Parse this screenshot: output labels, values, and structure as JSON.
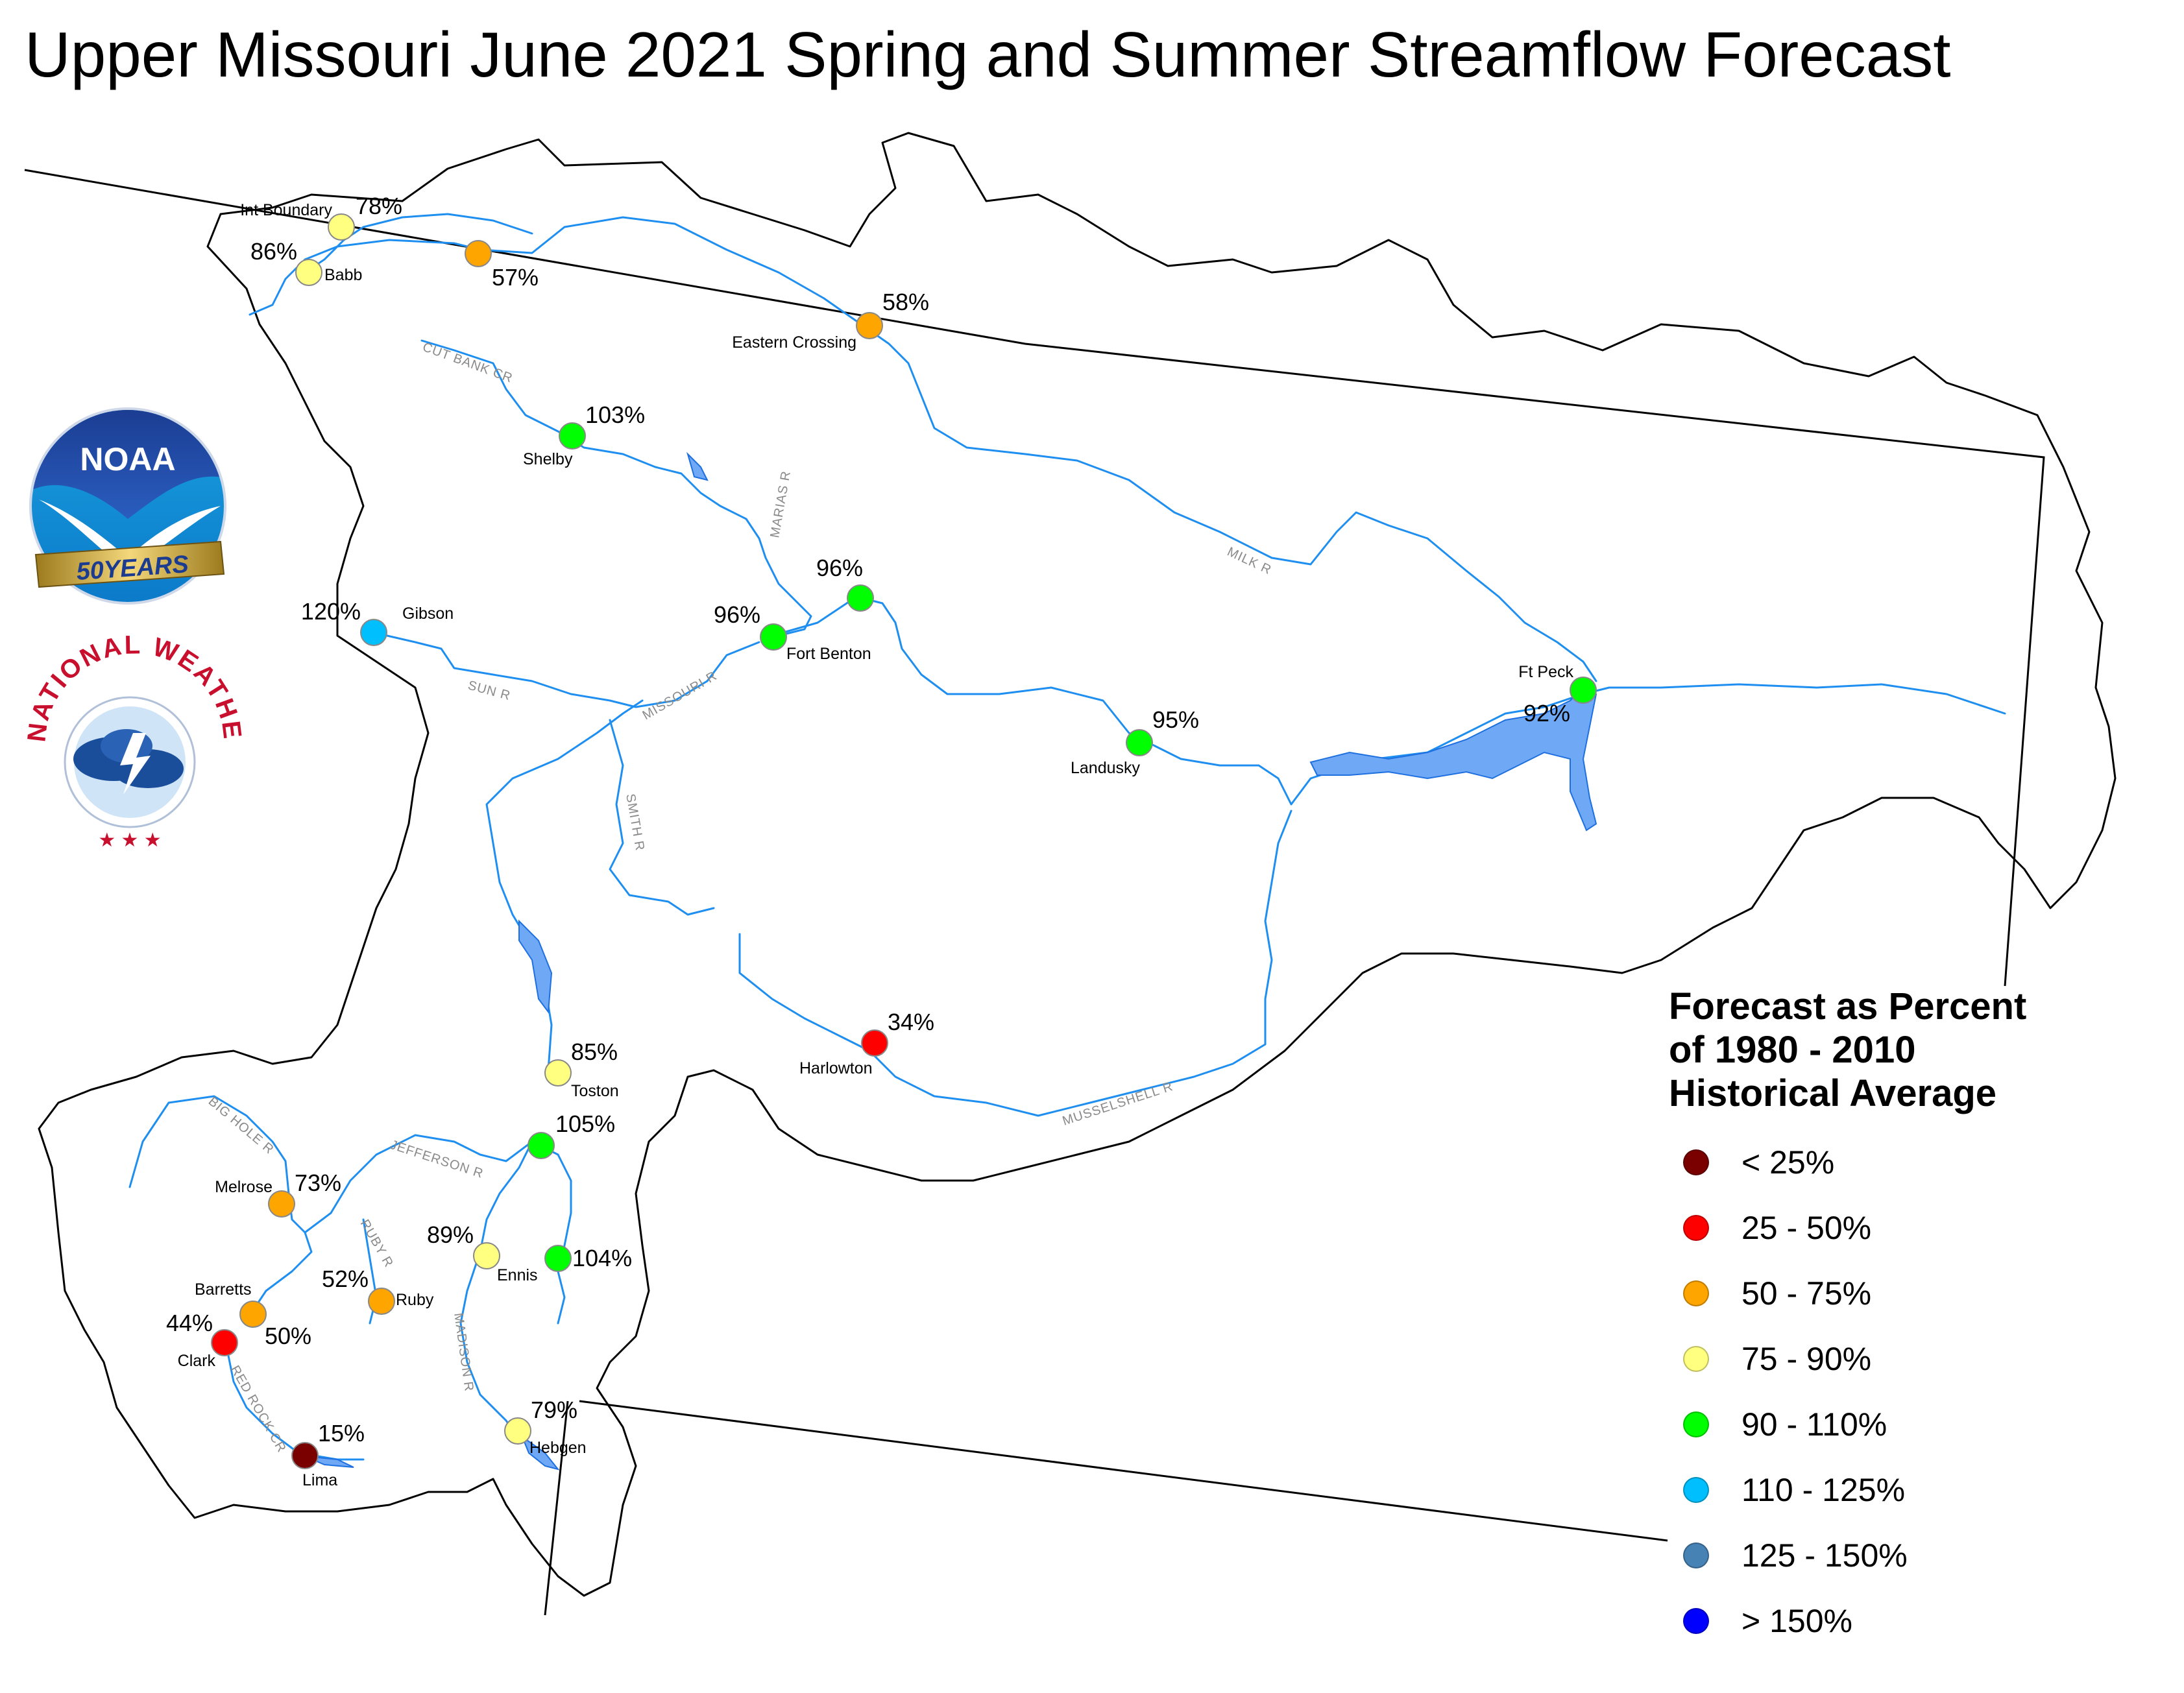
{
  "title": "Upper Missouri June 2021 Spring and Summer Streamflow Forecast",
  "legend": {
    "title_lines": [
      "Forecast as Percent",
      "of 1980 - 2010",
      "Historical Average"
    ],
    "items": [
      {
        "label": "< 25%",
        "color": "#7a0000"
      },
      {
        "label": "25 - 50%",
        "color": "#ff0000"
      },
      {
        "label": "50 - 75%",
        "color": "#ffa500"
      },
      {
        "label": "75 - 90%",
        "color": "#ffff80"
      },
      {
        "label": "90 - 110%",
        "color": "#00ff00"
      },
      {
        "label": "110 - 125%",
        "color": "#00bfff"
      },
      {
        "label": "125 - 150%",
        "color": "#4682b4"
      },
      {
        "label": "> 150%",
        "color": "#0000ff"
      }
    ]
  },
  "stations": [
    {
      "name": "Int Boundary",
      "pct": "78%",
      "color": "#ffff80"
    },
    {
      "name": "Babb",
      "pct": "86%",
      "color": "#ffff80"
    },
    {
      "name": "",
      "pct": "57%",
      "color": "#ffa500"
    },
    {
      "name": "Eastern Crossing",
      "pct": "58%",
      "color": "#ffa500"
    },
    {
      "name": "Shelby",
      "pct": "103%",
      "color": "#00ff00"
    },
    {
      "name": "Gibson",
      "pct": "120%",
      "color": "#00bfff"
    },
    {
      "name": "",
      "pct": "96%",
      "color": "#00ff00"
    },
    {
      "name": "Fort Benton",
      "pct": "96%",
      "color": "#00ff00"
    },
    {
      "name": "Landusky",
      "pct": "95%",
      "color": "#00ff00"
    },
    {
      "name": "Ft Peck",
      "pct": "92%",
      "color": "#00ff00"
    },
    {
      "name": "Harlowton",
      "pct": "34%",
      "color": "#ff0000"
    },
    {
      "name": "Toston",
      "pct": "85%",
      "color": "#ffff80"
    },
    {
      "name": "",
      "pct": "105%",
      "color": "#00ff00"
    },
    {
      "name": "Melrose",
      "pct": "73%",
      "color": "#ffa500"
    },
    {
      "name": "Ennis",
      "pct": "89%",
      "color": "#ffff80"
    },
    {
      "name": "",
      "pct": "104%",
      "color": "#00ff00"
    },
    {
      "name": "Ruby",
      "pct": "52%",
      "color": "#ffa500"
    },
    {
      "name": "Barretts",
      "pct": "50%",
      "color": "#ffa500"
    },
    {
      "name": "Clark",
      "pct": "44%",
      "color": "#ff0000"
    },
    {
      "name": "Lima",
      "pct": "15%",
      "color": "#7a0000"
    },
    {
      "name": "Hebgen",
      "pct": "79%",
      "color": "#ffff80"
    }
  ],
  "rivers": [
    {
      "label": "CUT BANK CR"
    },
    {
      "label": "MARIAS R"
    },
    {
      "label": "MILK R"
    },
    {
      "label": "SUN R"
    },
    {
      "label": "MISSOURI R"
    },
    {
      "label": "SMITH R"
    },
    {
      "label": "MUSSELSHELL R"
    },
    {
      "label": "BIG HOLE R"
    },
    {
      "label": "JEFFERSON R"
    },
    {
      "label": "RUBY R"
    },
    {
      "label": "MADISON R"
    },
    {
      "label": "RED ROCK CR"
    }
  ],
  "logos": {
    "noaa_text": "NOAA",
    "noaa_banner": "50YEARS",
    "nws_text": "NATIONAL WEATHER SERVICE"
  }
}
